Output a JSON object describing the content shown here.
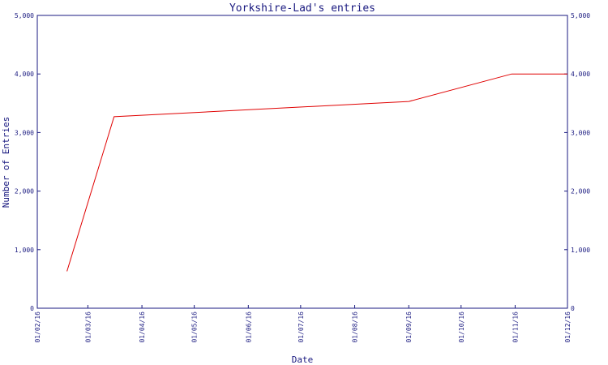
{
  "chart_data": {
    "type": "line",
    "title": "Yorkshire-Lad's entries",
    "xlabel": "Date",
    "ylabel": "Number of Entries",
    "ylim": [
      0,
      5000
    ],
    "yticks": [
      {
        "value": 0,
        "label": "0"
      },
      {
        "value": 1000,
        "label": "1,000"
      },
      {
        "value": 2000,
        "label": "2,000"
      },
      {
        "value": 3000,
        "label": "3,000"
      },
      {
        "value": 4000,
        "label": "4,000"
      },
      {
        "value": 5000,
        "label": "5,000"
      }
    ],
    "xticks": [
      "01/02/16",
      "01/03/16",
      "01/04/16",
      "01/05/16",
      "01/06/16",
      "01/07/16",
      "01/08/16",
      "01/09/16",
      "01/10/16",
      "01/11/16",
      "01/12/16"
    ],
    "xlim": [
      "2016-02-01",
      "2016-12-01"
    ],
    "series": [
      {
        "color": "#e00000",
        "x": [
          "2016-02-18",
          "2016-03-16",
          "2016-09-01",
          "2016-10-30",
          "2016-12-01"
        ],
        "y": [
          630,
          3270,
          3530,
          4000,
          4000
        ]
      }
    ],
    "grid": false,
    "axis_color": "#1a1a80"
  }
}
